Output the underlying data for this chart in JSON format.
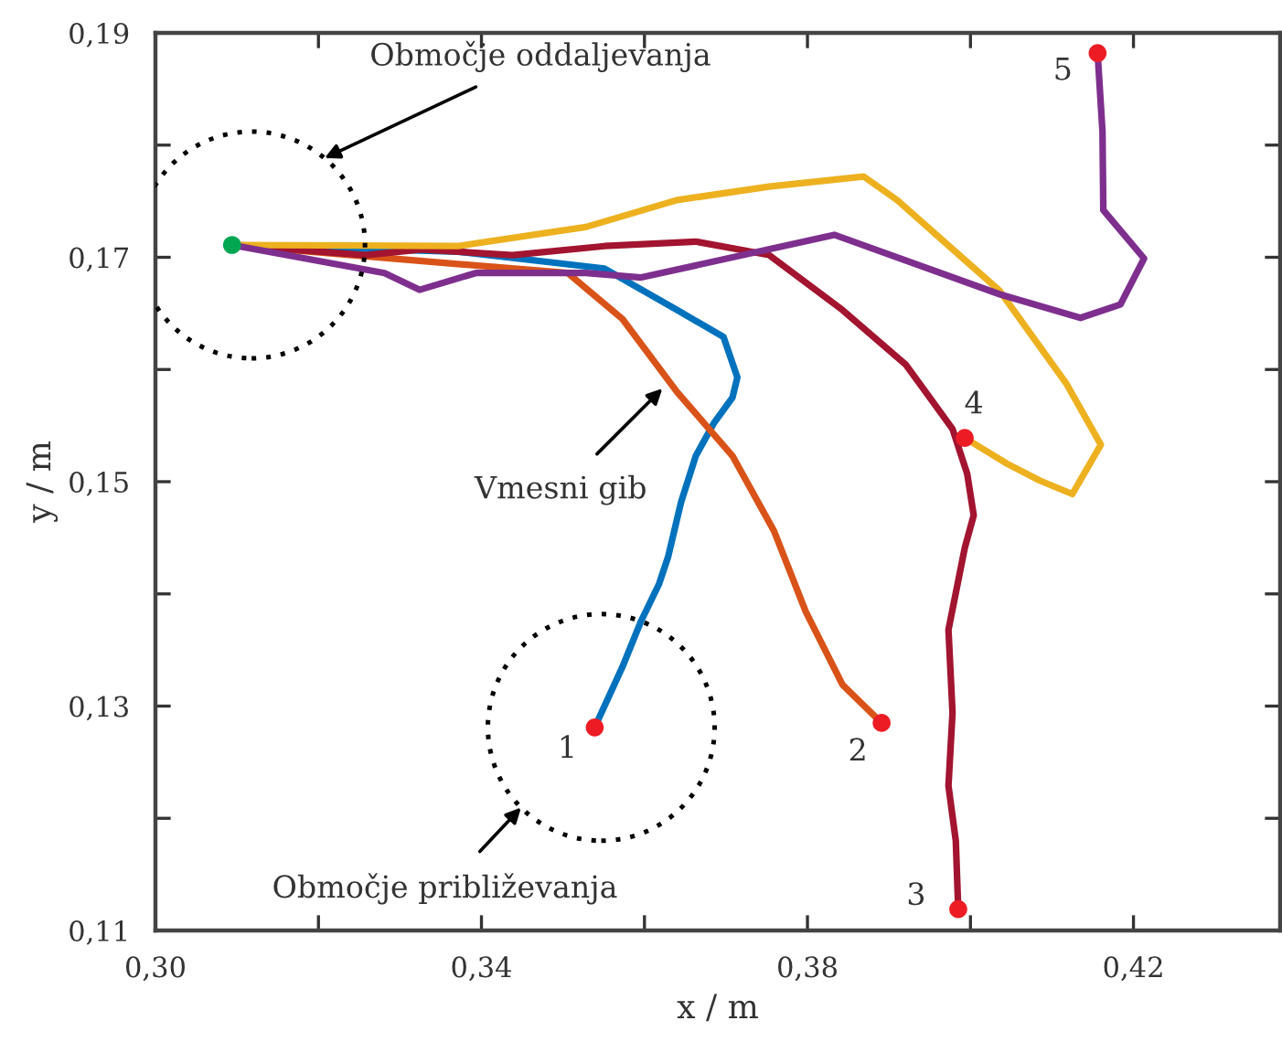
{
  "chart_data": {
    "type": "line",
    "xlabel": "x / m",
    "ylabel": "y / m",
    "xlim": [
      0.3,
      0.438
    ],
    "ylim": [
      0.11,
      0.19
    ],
    "xticks": [
      {
        "value": 0.3,
        "label": "0,30"
      },
      {
        "value": 0.32,
        "label": null
      },
      {
        "value": 0.34,
        "label": "0,34"
      },
      {
        "value": 0.36,
        "label": null
      },
      {
        "value": 0.38,
        "label": "0,38"
      },
      {
        "value": 0.4,
        "label": null
      },
      {
        "value": 0.42,
        "label": "0,42"
      }
    ],
    "yticks": [
      {
        "value": 0.11,
        "label": "0,11"
      },
      {
        "value": 0.12,
        "label": null
      },
      {
        "value": 0.13,
        "label": "0,13"
      },
      {
        "value": 0.14,
        "label": null
      },
      {
        "value": 0.15,
        "label": "0,15"
      },
      {
        "value": 0.16,
        "label": null
      },
      {
        "value": 0.17,
        "label": "0,17"
      },
      {
        "value": 0.18,
        "label": null
      },
      {
        "value": 0.19,
        "label": "0,19"
      }
    ],
    "grid": false,
    "legend": false,
    "marker": "none",
    "line_style": "solid",
    "series": [
      {
        "name": "1",
        "color": "#0072bd",
        "x": [
          0.3094,
          0.3371,
          0.3551,
          0.364,
          0.3697,
          0.3714,
          0.3708,
          0.3685,
          0.3663,
          0.3645,
          0.3629,
          0.3618,
          0.3596,
          0.3573,
          0.3539
        ],
        "values": [
          0.1711,
          0.1705,
          0.169,
          0.1653,
          0.1629,
          0.1593,
          0.1575,
          0.1552,
          0.1523,
          0.1482,
          0.1433,
          0.1409,
          0.1376,
          0.1335,
          0.1281
        ]
      },
      {
        "name": "2",
        "color": "#d95319",
        "x": [
          0.3094,
          0.3371,
          0.3506,
          0.3573,
          0.364,
          0.3708,
          0.3759,
          0.3798,
          0.3843,
          0.3891
        ],
        "values": [
          0.1711,
          0.1694,
          0.1686,
          0.1645,
          0.158,
          0.1523,
          0.1456,
          0.1384,
          0.1319,
          0.1285
        ]
      },
      {
        "name": "3",
        "color": "#a2142f",
        "x": [
          0.3094,
          0.3258,
          0.3326,
          0.3438,
          0.3551,
          0.3663,
          0.3753,
          0.3843,
          0.3921,
          0.3978,
          0.3996,
          0.4004,
          0.3993,
          0.3973,
          0.3978,
          0.3973,
          0.3982,
          0.3985
        ],
        "values": [
          0.1711,
          0.1702,
          0.1707,
          0.1702,
          0.171,
          0.1714,
          0.1702,
          0.1653,
          0.1604,
          0.1547,
          0.1507,
          0.147,
          0.1441,
          0.1368,
          0.1294,
          0.1229,
          0.118,
          0.1119
        ]
      },
      {
        "name": "4",
        "color": "#edb120",
        "x": [
          0.3094,
          0.3371,
          0.3528,
          0.364,
          0.3753,
          0.3869,
          0.391,
          0.4036,
          0.4118,
          0.416,
          0.4125,
          0.4085,
          0.4045,
          0.3993
        ],
        "values": [
          0.1711,
          0.171,
          0.1727,
          0.1751,
          0.1763,
          0.1772,
          0.1751,
          0.167,
          0.1587,
          0.1533,
          0.1489,
          0.1501,
          0.1516,
          0.1539
        ]
      },
      {
        "name": "5",
        "color": "#7e2f8e",
        "x": [
          0.3094,
          0.3281,
          0.3324,
          0.3393,
          0.3528,
          0.3596,
          0.3833,
          0.4036,
          0.4135,
          0.4184,
          0.4213,
          0.4163,
          0.4162,
          0.4156
        ],
        "values": [
          0.1711,
          0.1686,
          0.1671,
          0.1686,
          0.1686,
          0.1682,
          0.172,
          0.1667,
          0.1646,
          0.1658,
          0.1699,
          0.1742,
          0.1812,
          0.1882
        ]
      },
      {
        "type": "scatter",
        "color": "#00a651",
        "marker": "circle",
        "x": [
          0.3094
        ],
        "values": [
          0.1711
        ]
      },
      {
        "type": "scatter",
        "color": "#ed1c24",
        "marker": "circle",
        "x": [
          0.3539,
          0.3891,
          0.3985,
          0.3993,
          0.4156
        ],
        "values": [
          0.1281,
          0.1285,
          0.1119,
          0.1539,
          0.1882
        ]
      }
    ],
    "annotations": [
      "Območje oddaljevanja",
      {
        "text": "Vmesni gib",
        "x": 0.3622,
        "y": 0.1583
      },
      "Območje približevanja"
    ]
  }
}
